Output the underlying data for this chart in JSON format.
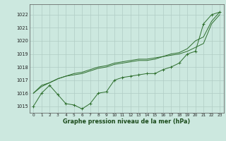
{
  "title": "Graphe pression niveau de la mer (hPa)",
  "bg_color": "#cce8df",
  "grid_color": "#b0ccc4",
  "line_color": "#2d6e2d",
  "xlim": [
    -0.5,
    23.5
  ],
  "ylim": [
    1014.5,
    1022.8
  ],
  "yticks": [
    1015,
    1016,
    1017,
    1018,
    1019,
    1020,
    1021,
    1022
  ],
  "xticks": [
    0,
    1,
    2,
    3,
    4,
    5,
    6,
    7,
    8,
    9,
    10,
    11,
    12,
    13,
    14,
    15,
    16,
    17,
    18,
    19,
    20,
    21,
    22,
    23
  ],
  "series": [
    {
      "x": [
        0,
        1,
        2,
        3,
        4,
        5,
        6,
        7,
        8,
        9,
        10,
        11,
        12,
        13,
        14,
        15,
        16,
        17,
        18,
        19,
        20,
        21,
        22,
        23
      ],
      "y": [
        1015.0,
        1016.0,
        1016.6,
        1015.9,
        1015.2,
        1015.1,
        1014.8,
        1015.2,
        1016.0,
        1016.1,
        1017.0,
        1017.2,
        1017.3,
        1017.4,
        1017.5,
        1017.5,
        1017.8,
        1018.0,
        1018.3,
        1019.0,
        1019.2,
        1021.3,
        1022.0,
        1022.2
      ],
      "marker": true
    },
    {
      "x": [
        0,
        1,
        2,
        3,
        4,
        5,
        6,
        7,
        8,
        9,
        10,
        11,
        12,
        13,
        14,
        15,
        16,
        17,
        18,
        19,
        20,
        21,
        22,
        23
      ],
      "y": [
        1016.0,
        1016.6,
        1016.8,
        1017.1,
        1017.3,
        1017.4,
        1017.5,
        1017.7,
        1017.9,
        1018.0,
        1018.2,
        1018.3,
        1018.4,
        1018.5,
        1018.5,
        1018.6,
        1018.8,
        1018.9,
        1019.0,
        1019.2,
        1019.5,
        1019.8,
        1021.3,
        1022.0
      ],
      "marker": false
    },
    {
      "x": [
        0,
        1,
        2,
        3,
        4,
        5,
        6,
        7,
        8,
        9,
        10,
        11,
        12,
        13,
        14,
        15,
        16,
        17,
        18,
        19,
        20,
        21,
        22,
        23
      ],
      "y": [
        1016.0,
        1016.5,
        1016.8,
        1017.1,
        1017.3,
        1017.5,
        1017.6,
        1017.8,
        1018.0,
        1018.1,
        1018.3,
        1018.4,
        1018.5,
        1018.6,
        1018.6,
        1018.7,
        1018.8,
        1019.0,
        1019.1,
        1019.4,
        1020.0,
        1020.3,
        1021.5,
        1022.2
      ],
      "marker": false
    }
  ]
}
